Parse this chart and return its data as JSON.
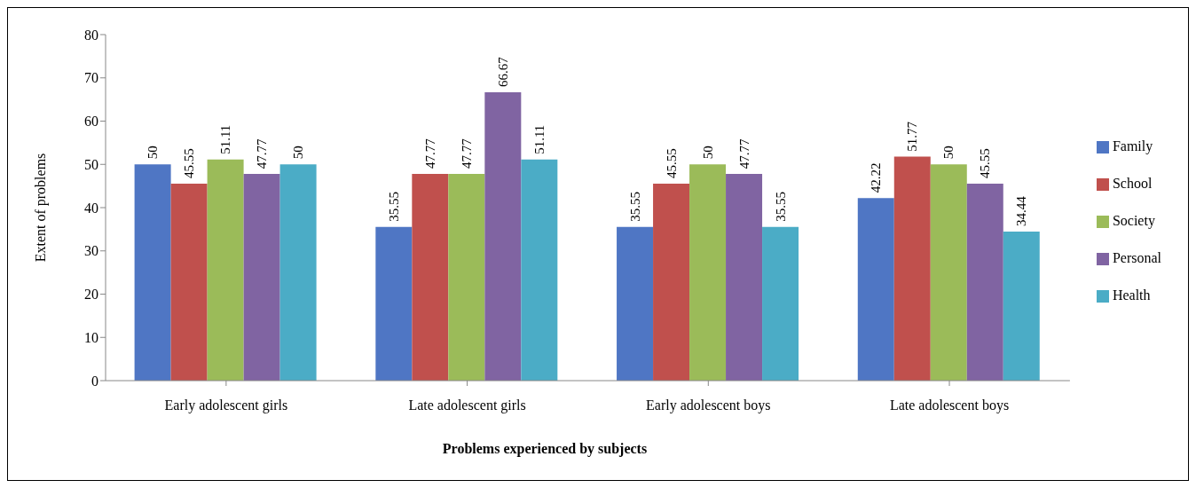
{
  "chart_data": {
    "type": "bar",
    "xlabel": "Problems experienced by subjects",
    "ylabel": "Extent of problems",
    "categories": [
      "Early adolescent girls",
      "Late adolescent girls",
      "Early adolescent boys",
      "Late adolescent boys"
    ],
    "series": [
      {
        "name": "Family",
        "color": "#4f76c4",
        "values": [
          50,
          35.55,
          35.55,
          42.22
        ]
      },
      {
        "name": "School",
        "color": "#c0504d",
        "values": [
          45.55,
          47.77,
          45.55,
          51.77
        ]
      },
      {
        "name": "Society",
        "color": "#9bbb59",
        "values": [
          51.11,
          47.77,
          50,
          50
        ]
      },
      {
        "name": "Personal",
        "color": "#8064a2",
        "values": [
          47.77,
          66.67,
          47.77,
          45.55
        ]
      },
      {
        "name": "Health",
        "color": "#4bacc6",
        "values": [
          50,
          51.11,
          35.55,
          34.44
        ]
      }
    ],
    "ylim": [
      0,
      80
    ],
    "yticks": [
      0,
      10,
      20,
      30,
      40,
      50,
      60,
      70,
      80
    ],
    "data_labels": true,
    "legend": "right",
    "grid": false
  }
}
